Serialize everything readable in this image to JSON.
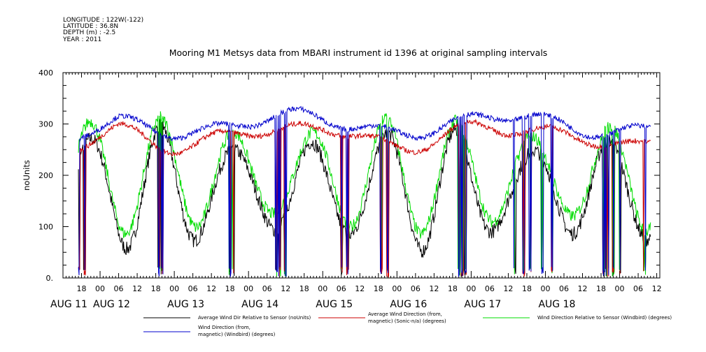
{
  "header": {
    "meta_lines": [
      "LONGITUDE : 122W(-122)",
      "LATITUDE : 36.8N",
      "DEPTH (m) : -2.5",
      "YEAR : 2011"
    ],
    "title": "Mooring M1 Metsys data from MBARI instrument id 1396 at original sampling intervals"
  },
  "chart_data": {
    "type": "line",
    "ylabel": "noUnits",
    "ylim": [
      0,
      400
    ],
    "y_ticks": [
      "0.",
      "100",
      "200",
      "300",
      "400"
    ],
    "x_hour_labels": [
      "18",
      "00",
      "06",
      "12",
      "18",
      "00",
      "06",
      "12",
      "18",
      "00",
      "06",
      "12",
      "18",
      "00",
      "06",
      "12",
      "18",
      "00",
      "06",
      "12",
      "18",
      "00",
      "06",
      "12",
      "18",
      "00",
      "06",
      "12",
      "18",
      "00",
      "06",
      "12"
    ],
    "x_day_labels": [
      "AUG 11",
      "AUG 12",
      "AUG 13",
      "AUG 14",
      "AUG 15",
      "AUG 16",
      "AUG 17",
      "AUG 18"
    ],
    "grid": false,
    "series": [
      {
        "name": "Average Wind Dir Relative to Sensor (noUnits)",
        "color": "#000000"
      },
      {
        "name": "Average Wind Direction (from, magnetic) (Sonic-n/a) (degrees)",
        "color": "#cc0000"
      },
      {
        "name": "Wind Direction Relative to Sensor (Windbird) (degrees)",
        "color": "#00dd00"
      },
      {
        "name": "Wind Direction (from, magnetic) (Windbird) (degrees)",
        "color": "#0000cc"
      }
    ]
  },
  "legend": {
    "black": {
      "line1": "Average Wind Dir Relative to Sensor (noUnits)",
      "line2": ""
    },
    "red": {
      "line1": "Average Wind Direction (from,",
      "line2": "magnetic) (Sonic-n/a) (degrees)"
    },
    "green": {
      "line1": "Wind Direction Relative to Sensor (Windbird) (degrees)",
      "line2": ""
    },
    "blue": {
      "line1": "Wind Direction (from,",
      "line2": "magnetic) (Windbird) (degrees)"
    }
  }
}
